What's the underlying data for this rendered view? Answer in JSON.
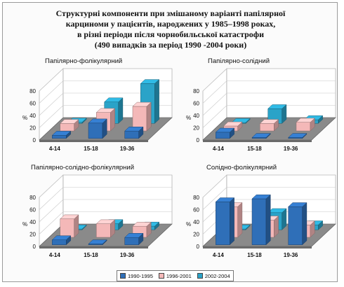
{
  "title_lines": [
    "Структурні компоненти при змішаному варіанті папілярної",
    "карциноми у пацієнтів, народжених у 1985–1998 роках,",
    "в різні періоди після чорнобильської катастрофи",
    "(490 випадків за період 1990 -2004 роки)"
  ],
  "legend": [
    "1990-1995",
    "1996-2001",
    "2002-2004"
  ],
  "colors": {
    "series": [
      "#2f6fb8",
      "#f4b8b8",
      "#2aa3c8"
    ]
  },
  "chart_data": [
    {
      "type": "bar",
      "title": "Папілярно-фолікулярний",
      "ylabel": "%",
      "ylim": [
        0,
        80
      ],
      "yticks": [
        0,
        20,
        40,
        60,
        80
      ],
      "categories": [
        "4-14",
        "15-18",
        "19-36"
      ],
      "series": [
        {
          "name": "1990-1995",
          "values": [
            5,
            25,
            12
          ]
        },
        {
          "name": "1996-2001",
          "values": [
            12,
            30,
            40
          ]
        },
        {
          "name": "2002-2004",
          "values": [
            2,
            35,
            65
          ]
        }
      ]
    },
    {
      "type": "bar",
      "title": "Папілярно-солідний",
      "ylabel": "%",
      "ylim": [
        0,
        80
      ],
      "yticks": [
        0,
        20,
        40,
        60,
        80
      ],
      "categories": [
        "4-14",
        "15-18",
        "19-36"
      ],
      "series": [
        {
          "name": "1990-1995",
          "values": [
            10,
            0,
            0
          ]
        },
        {
          "name": "1996-2001",
          "values": [
            8,
            12,
            14
          ]
        },
        {
          "name": "2002-2004",
          "values": [
            0,
            24,
            6
          ]
        }
      ]
    },
    {
      "type": "bar",
      "title": "Папілярно-солідно-фолікулярний",
      "ylabel": "%",
      "ylim": [
        0,
        80
      ],
      "yticks": [
        0,
        20,
        40,
        60,
        80
      ],
      "categories": [
        "4-14",
        "15-18",
        "19-36"
      ],
      "series": [
        {
          "name": "1990-1995",
          "values": [
            8,
            0,
            12
          ]
        },
        {
          "name": "1996-2001",
          "values": [
            30,
            22,
            18
          ]
        },
        {
          "name": "2002-2004",
          "values": [
            0,
            10,
            6
          ]
        }
      ]
    },
    {
      "type": "bar",
      "title": "Солідно-фолікулярний",
      "ylabel": "%",
      "ylim": [
        0,
        80
      ],
      "yticks": [
        0,
        20,
        40,
        60,
        80
      ],
      "categories": [
        "4-14",
        "15-18",
        "19-36"
      ],
      "series": [
        {
          "name": "1990-1995",
          "values": [
            70,
            75,
            62
          ]
        },
        {
          "name": "1996-2001",
          "values": [
            50,
            28,
            20
          ]
        },
        {
          "name": "2002-2004",
          "values": [
            0,
            28,
            8
          ]
        }
      ]
    }
  ]
}
